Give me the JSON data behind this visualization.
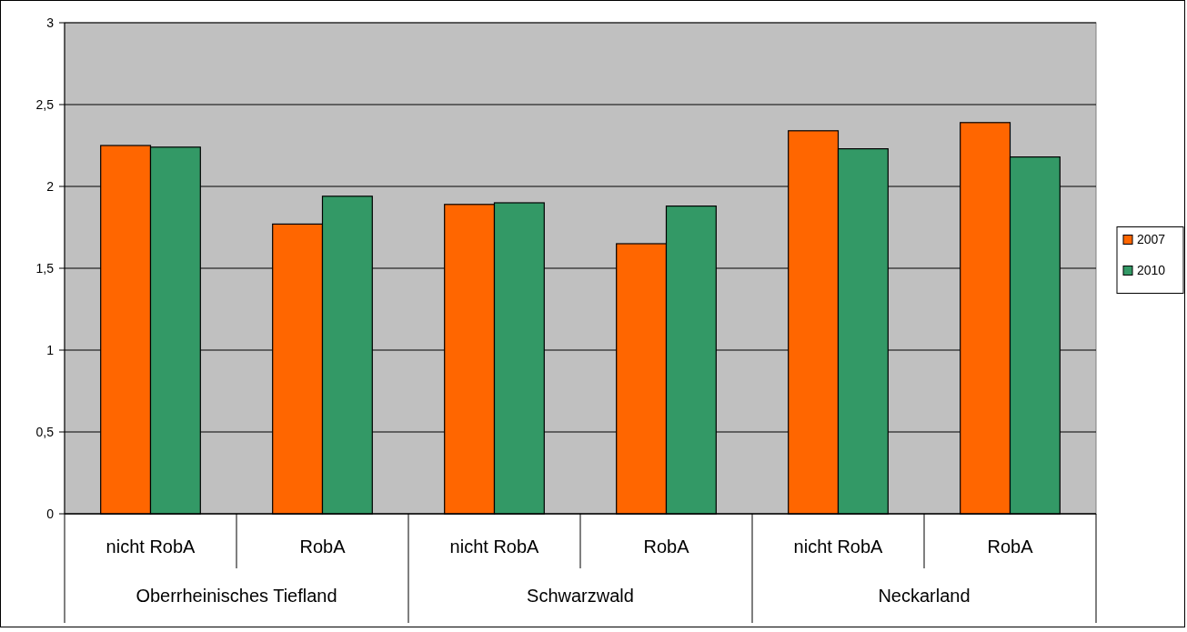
{
  "chart_data": {
    "type": "bar",
    "categories": [
      "nicht RobA",
      "RobA",
      "nicht RobA",
      "RobA",
      "nicht RobA",
      "RobA"
    ],
    "series": [
      {
        "name": "2007",
        "color": "#ff6600",
        "values": [
          2.25,
          1.77,
          1.89,
          1.65,
          2.34,
          2.39
        ]
      },
      {
        "name": "2010",
        "color": "#339966",
        "values": [
          2.24,
          1.94,
          1.9,
          1.88,
          2.23,
          2.18
        ]
      }
    ],
    "annotations": [
      "Oberrheinisches Tiefland",
      "Schwarzwald",
      "Neckarland"
    ],
    "ylim": [
      0,
      3
    ],
    "yticks": [
      0,
      {
        "value": 0.5,
        "label": "0,5"
      },
      1,
      {
        "value": 1.5,
        "label": "1,5"
      },
      2,
      {
        "value": 2.5,
        "label": "2,5"
      },
      3
    ],
    "grid": "y",
    "legend": "right"
  }
}
